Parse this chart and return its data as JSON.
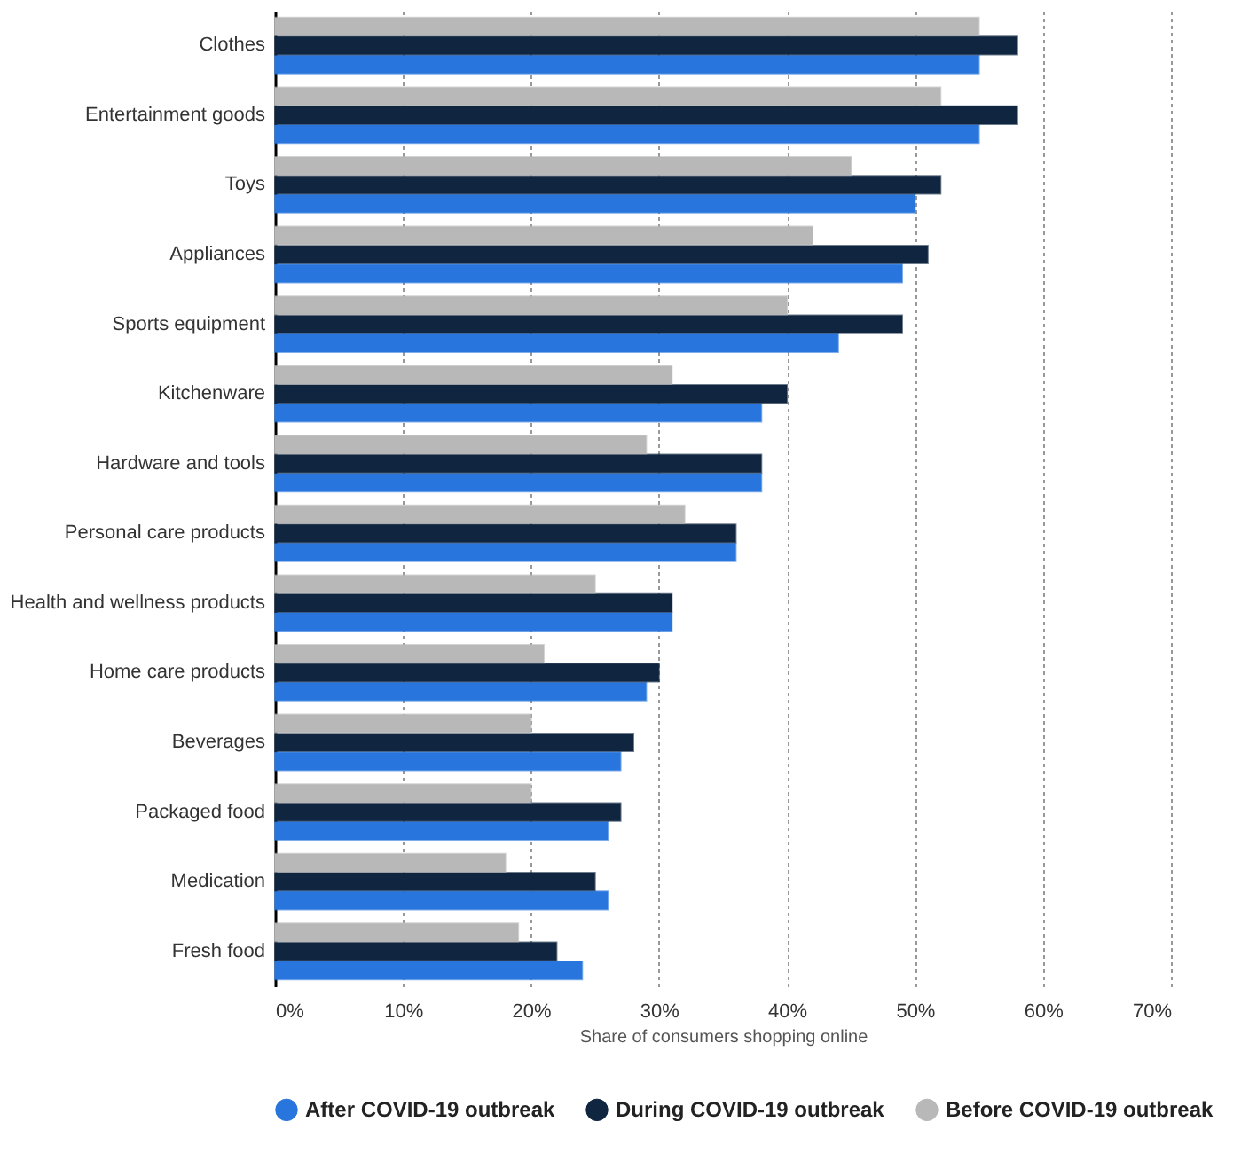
{
  "chart_data": {
    "type": "bar",
    "orientation": "horizontal",
    "xlabel": "Share of consumers shopping online",
    "categories": [
      "Clothes",
      "Entertainment goods",
      "Toys",
      "Appliances",
      "Sports equipment",
      "Kitchenware",
      "Hardware and tools",
      "Personal care products",
      "Health and wellness products",
      "Home care products",
      "Beverages",
      "Packaged food",
      "Medication",
      "Fresh food"
    ],
    "series": [
      {
        "name": "After COVID-19 outbreak",
        "color": "#2876dd",
        "values": [
          55,
          55,
          50,
          49,
          44,
          38,
          38,
          36,
          31,
          29,
          27,
          26,
          26,
          24
        ]
      },
      {
        "name": "During COVID-19 outbreak",
        "color": "#0f2540",
        "values": [
          58,
          58,
          52,
          51,
          49,
          40,
          38,
          36,
          31,
          30,
          28,
          27,
          25,
          22
        ]
      },
      {
        "name": "Before COVID-19 outbreak",
        "color": "#b8b8b8",
        "values": [
          55,
          52,
          45,
          42,
          40,
          31,
          29,
          32,
          25,
          21,
          20,
          20,
          18,
          19
        ]
      }
    ],
    "xlim": [
      0,
      70
    ],
    "xticks": [
      {
        "value": 0,
        "label": "0%"
      },
      {
        "value": 10,
        "label": "10%"
      },
      {
        "value": 20,
        "label": "20%"
      },
      {
        "value": 30,
        "label": "30%"
      },
      {
        "value": 40,
        "label": "40%"
      },
      {
        "value": 50,
        "label": "50%"
      },
      {
        "value": 60,
        "label": "60%"
      },
      {
        "value": 70,
        "label": "70%"
      }
    ],
    "grid": "x",
    "legend": "bottom"
  }
}
